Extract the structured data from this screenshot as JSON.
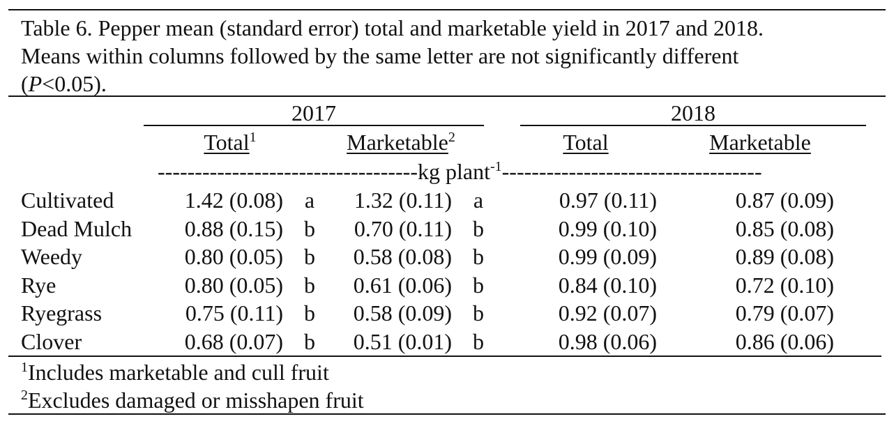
{
  "caption": {
    "line1": "Table 6. Pepper mean (standard error) total and marketable yield in 2017 and 2018.",
    "line2": "Means within columns followed by the same letter are not significantly different",
    "line3_open": "(",
    "line3_p": "P",
    "line3_rest": "<0.05)."
  },
  "header": {
    "year1": "2017",
    "year2": "2018",
    "total": "Total",
    "total_sup": "1",
    "marketable": "Marketable",
    "marketable_sup": "2",
    "total_2018": "Total",
    "marketable_2018": "Marketable",
    "units_dashes_left": "-----------------------------------",
    "units": "kg plant",
    "units_sup": "-1",
    "units_dashes_right": "-----------------------------------"
  },
  "rows": [
    {
      "name": "Cultivated",
      "t17": "1.42 (0.08)",
      "t17l": "a",
      "m17": "1.32 (0.11)",
      "m17l": "a",
      "t18": "0.97 (0.11)",
      "m18": "0.87 (0.09)"
    },
    {
      "name": "Dead Mulch",
      "t17": "0.88 (0.15)",
      "t17l": "b",
      "m17": "0.70 (0.11)",
      "m17l": "b",
      "t18": "0.99 (0.10)",
      "m18": "0.85 (0.08)"
    },
    {
      "name": "Weedy",
      "t17": "0.80 (0.05)",
      "t17l": "b",
      "m17": "0.58 (0.08)",
      "m17l": "b",
      "t18": "0.99 (0.09)",
      "m18": "0.89 (0.08)"
    },
    {
      "name": "Rye",
      "t17": "0.80 (0.05)",
      "t17l": "b",
      "m17": "0.61 (0.06)",
      "m17l": "b",
      "t18": "0.84 (0.10)",
      "m18": "0.72 (0.10)"
    },
    {
      "name": "Ryegrass",
      "t17": "0.75 (0.11)",
      "t17l": "b",
      "m17": "0.58 (0.09)",
      "m17l": "b",
      "t18": "0.92 (0.07)",
      "m18": "0.79 (0.07)"
    },
    {
      "name": "Clover",
      "t17": "0.68 (0.07)",
      "t17l": "b",
      "m17": "0.51 (0.01)",
      "m17l": "b",
      "t18": "0.98 (0.06)",
      "m18": "0.86 (0.06)"
    }
  ],
  "footnotes": [
    {
      "sup": "1",
      "text": "Includes marketable and cull fruit"
    },
    {
      "sup": "2",
      "text": "Excludes damaged or misshapen fruit"
    }
  ]
}
